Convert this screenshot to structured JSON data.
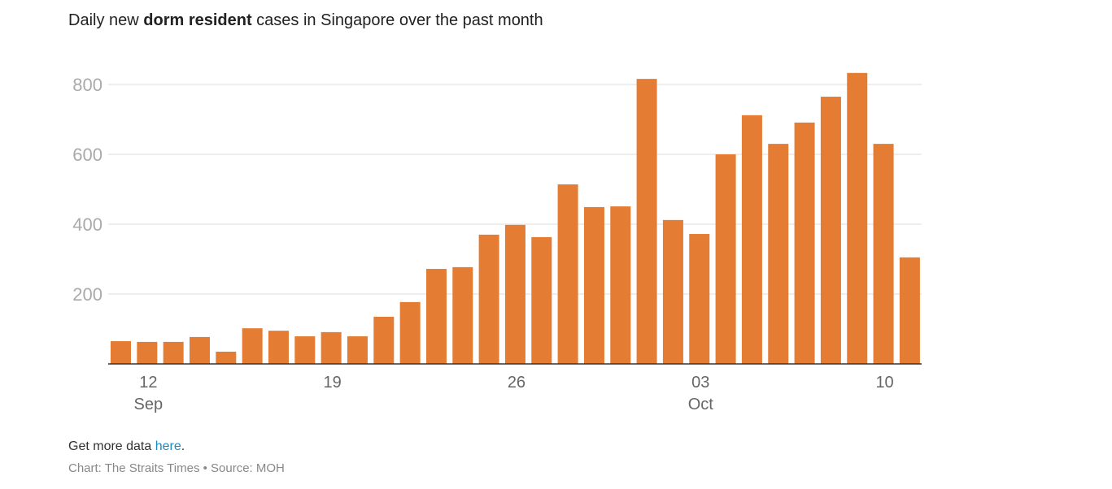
{
  "title": {
    "pre": "Daily new ",
    "bold": "dorm resident",
    "post": " cases in Singapore over the past month"
  },
  "footer": {
    "more_pre": "Get more data ",
    "more_link": "here",
    "more_post": ".",
    "source": "Chart: The Straits Times • Source: MOH"
  },
  "chart_data": {
    "type": "bar",
    "title": "Daily new dorm resident cases in Singapore over the past month",
    "xlabel": "",
    "ylabel": "",
    "ylim": [
      0,
      800
    ],
    "yticks": [
      200,
      400,
      600,
      800
    ],
    "bar_color": "#e47d33",
    "grid": true,
    "categories": [
      "Sep 11",
      "Sep 12",
      "Sep 13",
      "Sep 14",
      "Sep 15",
      "Sep 16",
      "Sep 17",
      "Sep 18",
      "Sep 19",
      "Sep 20",
      "Sep 21",
      "Sep 22",
      "Sep 23",
      "Sep 24",
      "Sep 25",
      "Sep 26",
      "Sep 27",
      "Sep 28",
      "Sep 29",
      "Sep 30",
      "Oct 1",
      "Oct 2",
      "Oct 3",
      "Oct 4",
      "Oct 5",
      "Oct 6",
      "Oct 7",
      "Oct 8",
      "Oct 9",
      "Oct 10",
      "Oct 11"
    ],
    "values": [
      65,
      63,
      63,
      77,
      35,
      102,
      95,
      79,
      91,
      79,
      135,
      177,
      272,
      277,
      370,
      398,
      363,
      514,
      449,
      451,
      816,
      412,
      372,
      600,
      712,
      630,
      691,
      765,
      833,
      630,
      305
    ],
    "xticks": [
      {
        "index": 1,
        "day": "12",
        "month": "Sep"
      },
      {
        "index": 8,
        "day": "19",
        "month": ""
      },
      {
        "index": 15,
        "day": "26",
        "month": ""
      },
      {
        "index": 22,
        "day": "03",
        "month": "Oct"
      },
      {
        "index": 29,
        "day": "10",
        "month": ""
      }
    ]
  }
}
